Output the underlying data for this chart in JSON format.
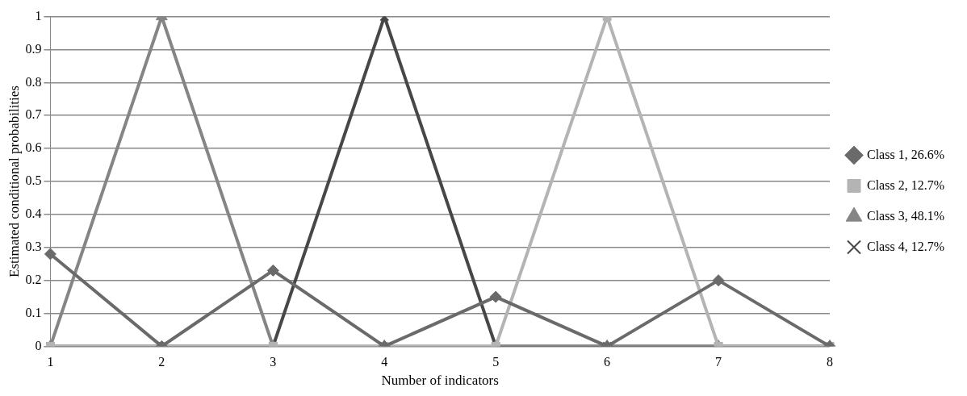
{
  "chart_data": {
    "type": "line",
    "xlabel": "Number of indicators",
    "ylabel": "Estimated conditional probabilities",
    "categories": [
      "1",
      "2",
      "3",
      "4",
      "5",
      "6",
      "7",
      "8"
    ],
    "series": [
      {
        "name": "Class 1, 26.6%",
        "color": "#6a6a6a",
        "marker": "diamond",
        "values": [
          0.28,
          0,
          0.23,
          0,
          0.15,
          0,
          0.2,
          0
        ]
      },
      {
        "name": "Class 2, 12.7%",
        "color": "#b4b4b4",
        "marker": "square",
        "values": [
          0,
          0,
          0,
          0,
          0,
          1,
          0,
          0
        ]
      },
      {
        "name": "Class 3, 48.1%",
        "color": "#858585",
        "marker": "triangle",
        "values": [
          0,
          1,
          0,
          0,
          0,
          0,
          0,
          0
        ]
      },
      {
        "name": "Class 4, 12.7%",
        "color": "#474747",
        "marker": "cross",
        "values": [
          0,
          0,
          0,
          1,
          0,
          0,
          0,
          0
        ]
      }
    ],
    "ylim": [
      0,
      1
    ],
    "yticks": [
      0,
      0.1,
      0.2,
      0.3,
      0.4,
      0.5,
      0.6,
      0.7,
      0.8,
      0.9,
      1
    ],
    "grid": "y",
    "legend": "right",
    "line_style": "solid"
  }
}
